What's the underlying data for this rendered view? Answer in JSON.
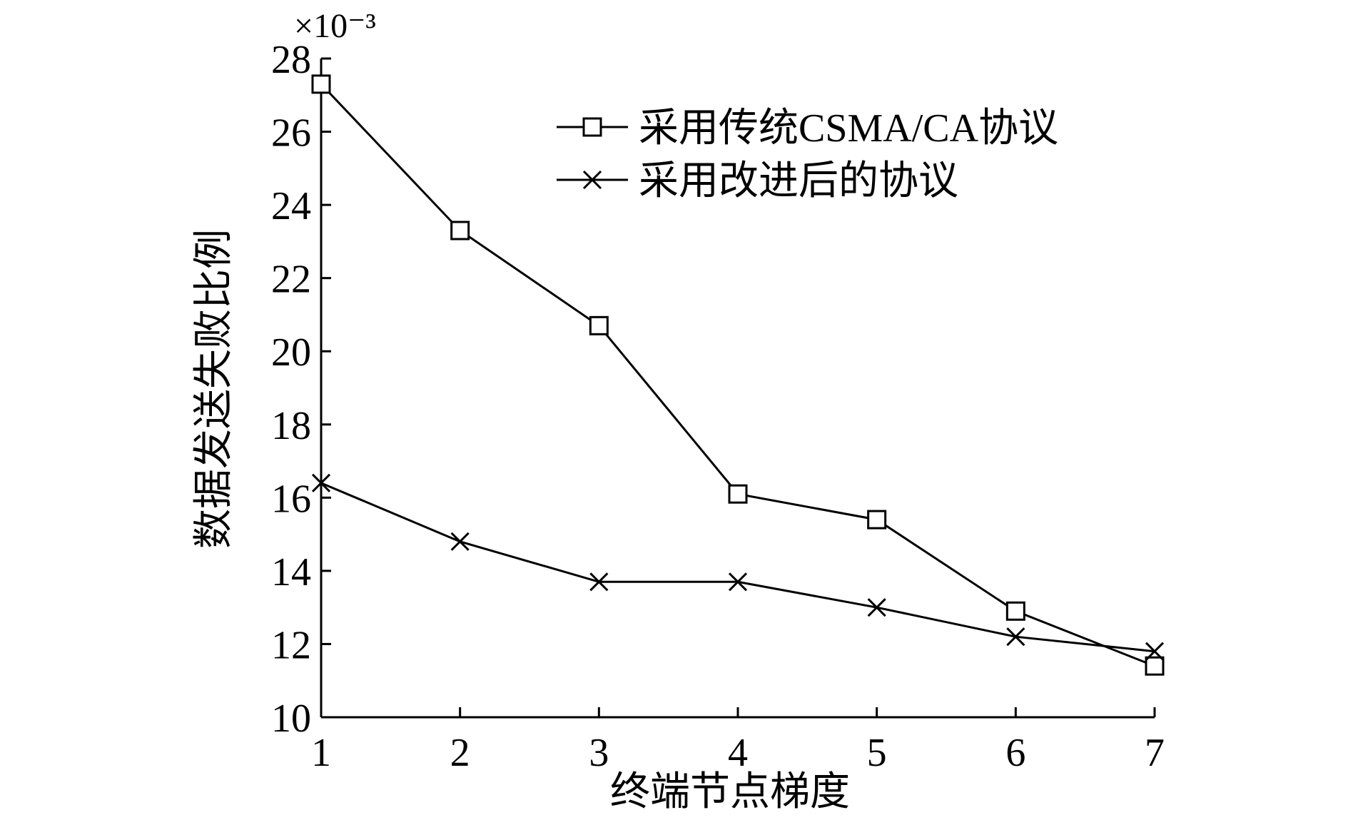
{
  "chart_data": {
    "type": "line",
    "xlabel": "终端节点梯度",
    "ylabel": "数据发送失败比例",
    "y_multiplier": "×10⁻³",
    "x": [
      1,
      2,
      3,
      4,
      5,
      6,
      7
    ],
    "xlim": [
      1,
      7
    ],
    "ylim": [
      10,
      28
    ],
    "x_ticks": [
      "1",
      "2",
      "3",
      "4",
      "5",
      "6",
      "7"
    ],
    "y_ticks": [
      "10",
      "12",
      "14",
      "16",
      "18",
      "20",
      "22",
      "24",
      "26",
      "28"
    ],
    "grid": false,
    "legend_position": "top-right",
    "series": [
      {
        "name": "采用传统CSMA/CA协议",
        "marker": "square",
        "color": "#000000",
        "values": [
          27.3,
          23.3,
          20.7,
          16.1,
          15.4,
          12.9,
          11.4
        ]
      },
      {
        "name": "采用改进后的协议",
        "marker": "x",
        "color": "#000000",
        "values": [
          16.4,
          14.8,
          13.7,
          13.7,
          13.0,
          12.2,
          11.8
        ]
      }
    ]
  }
}
